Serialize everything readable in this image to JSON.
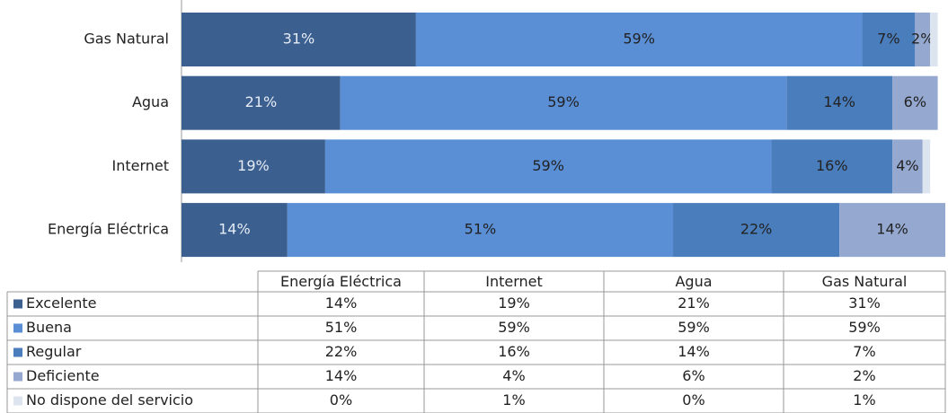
{
  "chart_data": {
    "type": "stacked_barh",
    "categories": [
      "Energía Eléctrica",
      "Internet",
      "Agua",
      "Gas Natural"
    ],
    "xlim": [
      0,
      101
    ],
    "series": [
      {
        "name": "Excelente",
        "color": "#3b5f8f",
        "values": [
          14,
          19,
          21,
          31
        ],
        "value_labels": [
          "14%",
          "19%",
          "21%",
          "31%"
        ]
      },
      {
        "name": "Buena",
        "color": "#5a8fd6",
        "values": [
          51,
          59,
          59,
          59
        ],
        "value_labels": [
          "51%",
          "59%",
          "59%",
          "59%"
        ]
      },
      {
        "name": "Regular",
        "color": "#4a7dbc",
        "values": [
          22,
          16,
          14,
          7
        ],
        "value_labels": [
          "22%",
          "16%",
          "14%",
          "7%"
        ]
      },
      {
        "name": "Deficiente",
        "color": "#94a8d0",
        "values": [
          14,
          4,
          6,
          2
        ],
        "value_labels": [
          "14%",
          "4%",
          "6%",
          "2%"
        ]
      },
      {
        "name": "No dispone del servicio",
        "color": "#dce4f0",
        "values": [
          0,
          1,
          0,
          1
        ],
        "value_labels": [
          "0%",
          "1%",
          "0%",
          "1%"
        ]
      }
    ]
  }
}
